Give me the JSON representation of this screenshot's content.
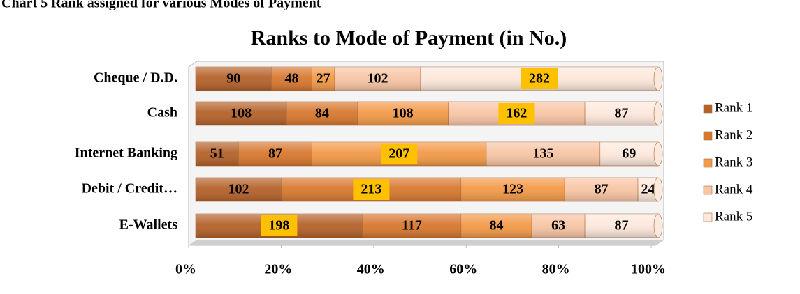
{
  "caption": "Chart 5 Rank assigned for various Modes of Payment",
  "chart_data": {
    "type": "stacked_bar_100",
    "orientation": "horizontal",
    "title": "Ranks  to Mode of Payment (in No.)",
    "categories": [
      "Cheque / D.D.",
      "Cash",
      "Internet Banking",
      "Debit / Credit…",
      "E-Wallets"
    ],
    "series": [
      {
        "name": "Rank 1",
        "color": "#b5622a",
        "values": [
          90,
          108,
          51,
          102,
          198
        ]
      },
      {
        "name": "Rank 2",
        "color": "#d8782f",
        "values": [
          48,
          84,
          87,
          213,
          117
        ]
      },
      {
        "name": "Rank 3",
        "color": "#f39a48",
        "values": [
          27,
          108,
          207,
          123,
          84
        ]
      },
      {
        "name": "Rank 4",
        "color": "#f8c5a5",
        "values": [
          102,
          162,
          135,
          87,
          63
        ]
      },
      {
        "name": "Rank 5",
        "color": "#fde8dc",
        "values": [
          282,
          87,
          69,
          24,
          87
        ]
      }
    ],
    "xlim": [
      0,
      100
    ],
    "xticks": [
      {
        "value": 0,
        "label": "0%"
      },
      {
        "value": 20,
        "label": "20%"
      },
      {
        "value": 40,
        "label": "40%"
      },
      {
        "value": 60,
        "label": "60%"
      },
      {
        "value": 80,
        "label": "80%"
      },
      {
        "value": 100,
        "label": "100%"
      }
    ],
    "legend": "right",
    "highlight_color": "#ffc000"
  }
}
